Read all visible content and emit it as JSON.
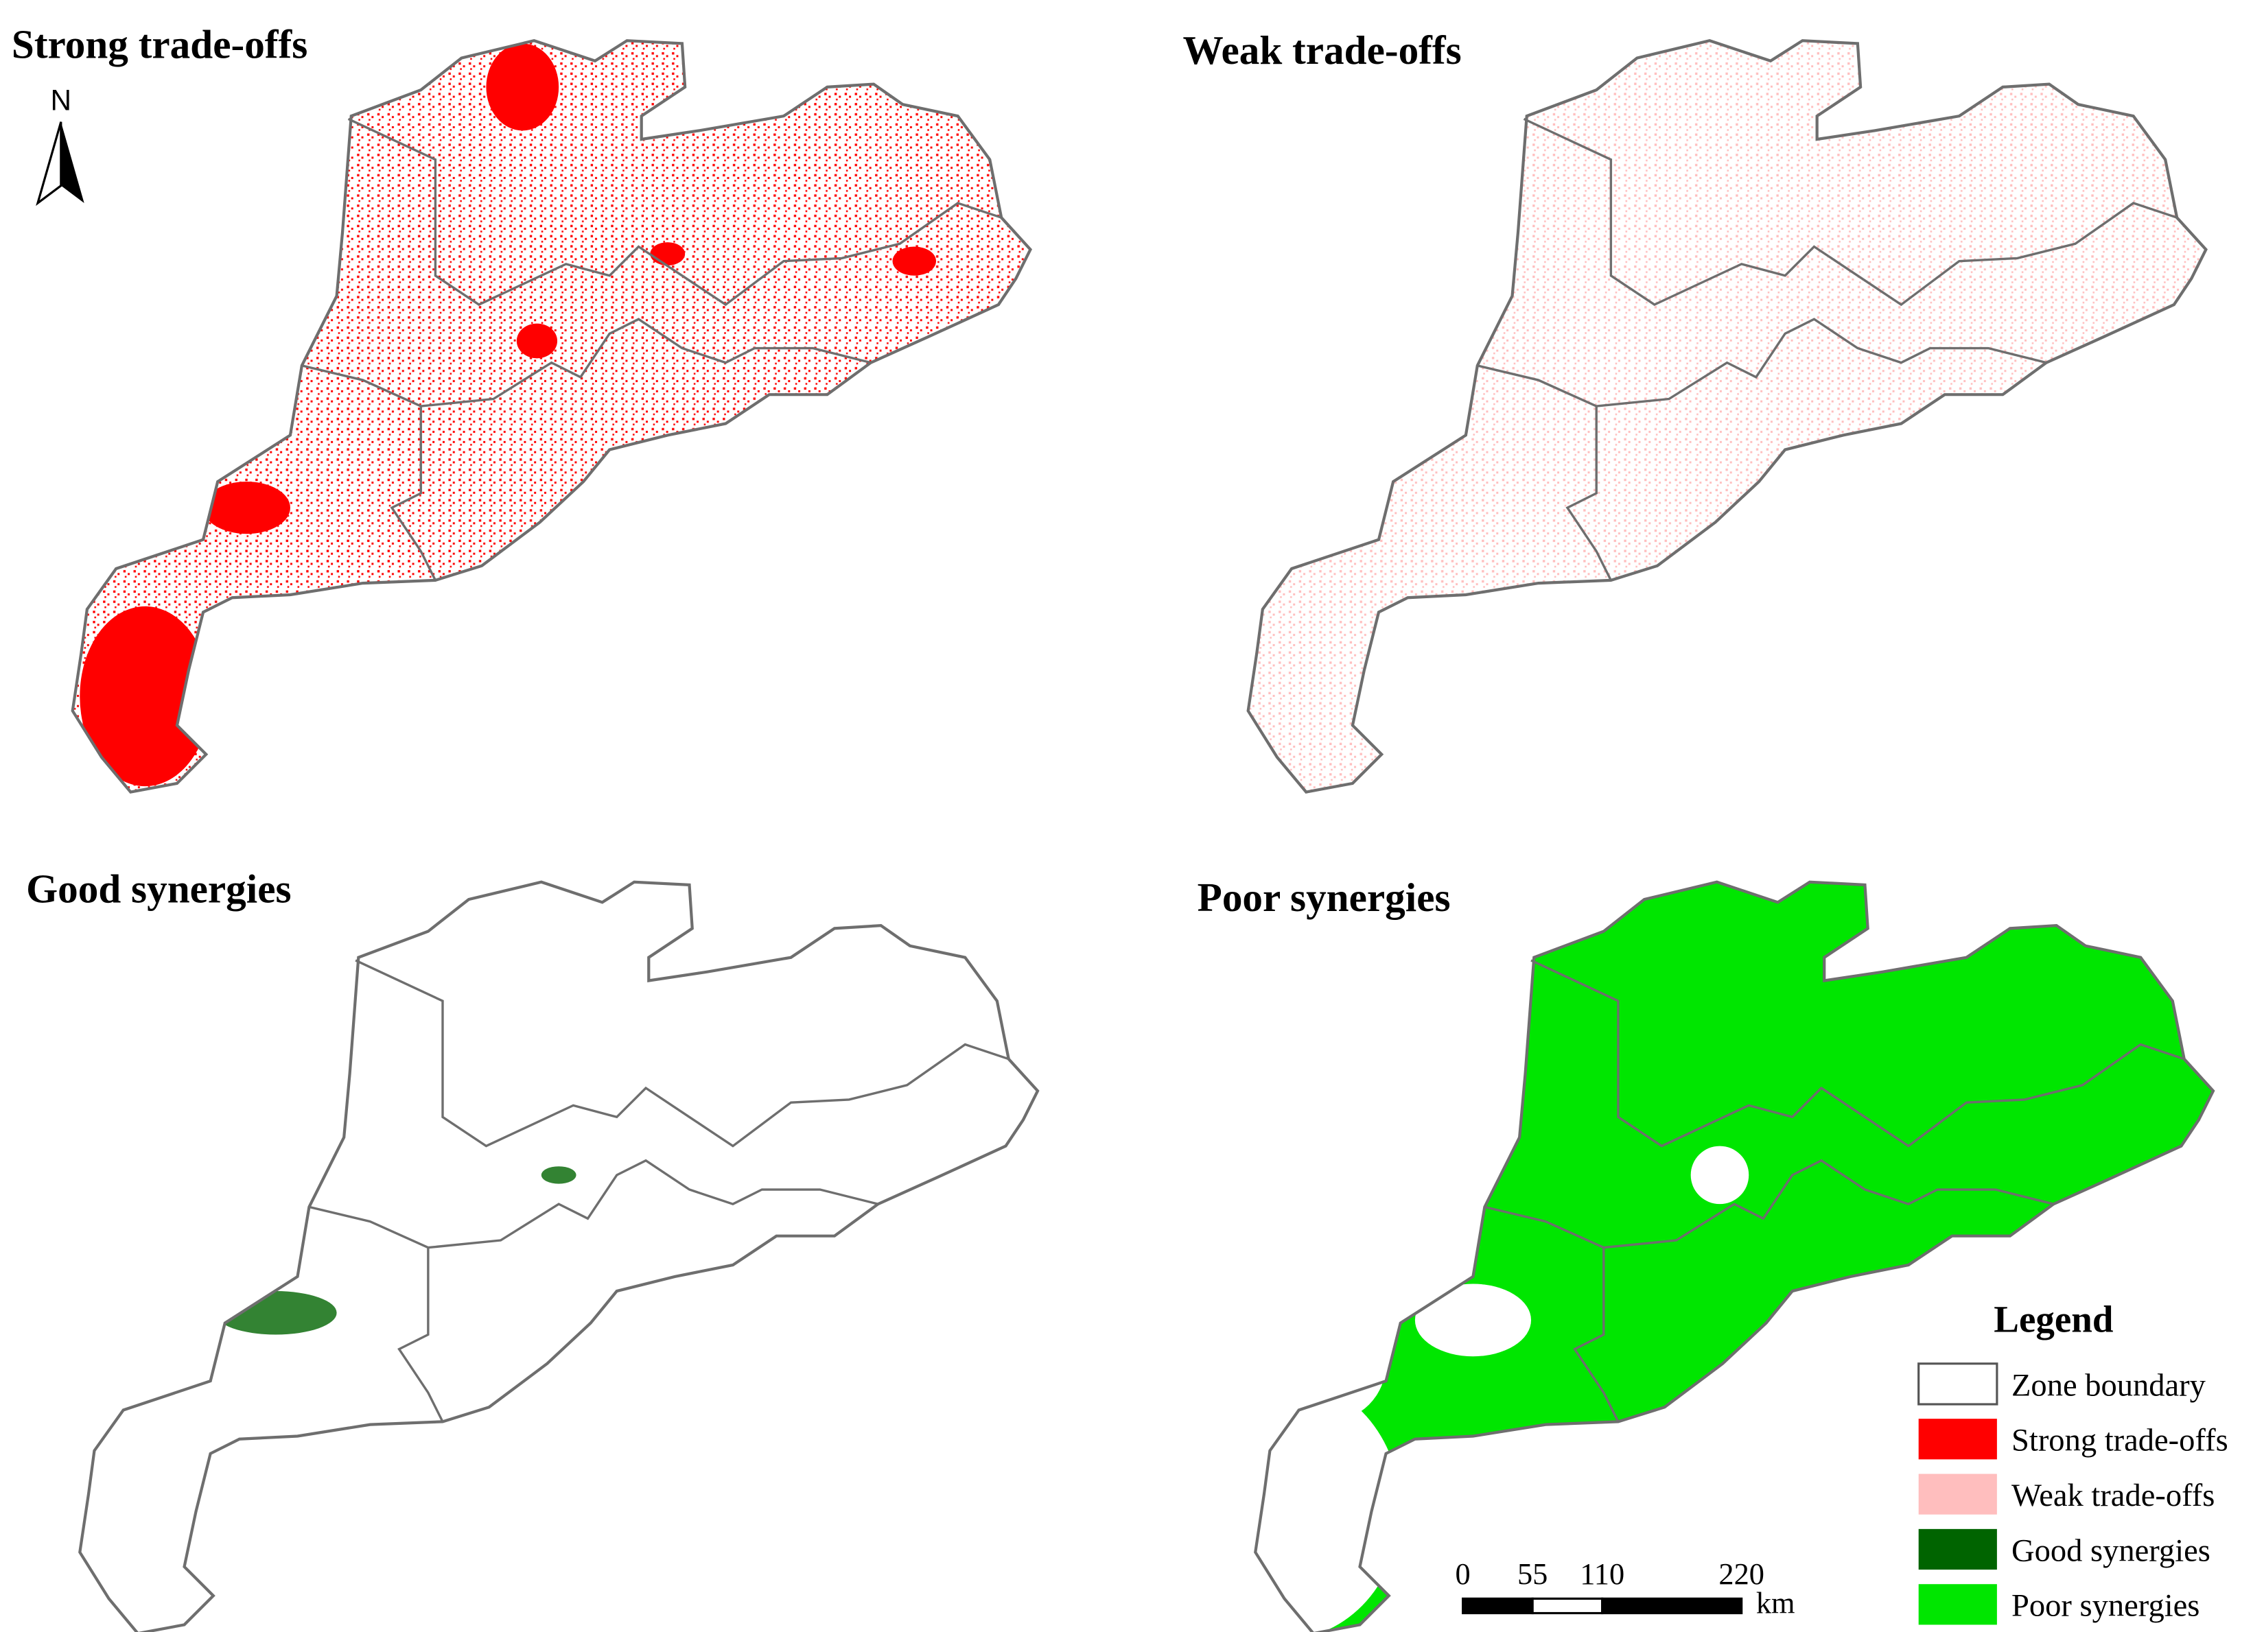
{
  "panels": [
    {
      "title": "Strong trade-offs"
    },
    {
      "title": "Weak trade-offs"
    },
    {
      "title": "Good synergies"
    },
    {
      "title": "Poor synergies"
    }
  ],
  "north_arrow": {
    "label": "N"
  },
  "legend": {
    "title": "Legend",
    "items": [
      {
        "label": "Zone boundary",
        "color": "#ffffff"
      },
      {
        "label": "Strong trade-offs",
        "color": "#ff0000"
      },
      {
        "label": "Weak trade-offs",
        "color": "#ffbebe"
      },
      {
        "label": "Good synergies",
        "color": "#006400"
      },
      {
        "label": "Poor synergies",
        "color": "#00e600"
      }
    ]
  },
  "scale_bar": {
    "ticks": [
      0,
      55,
      110,
      220
    ],
    "unit": "km"
  }
}
